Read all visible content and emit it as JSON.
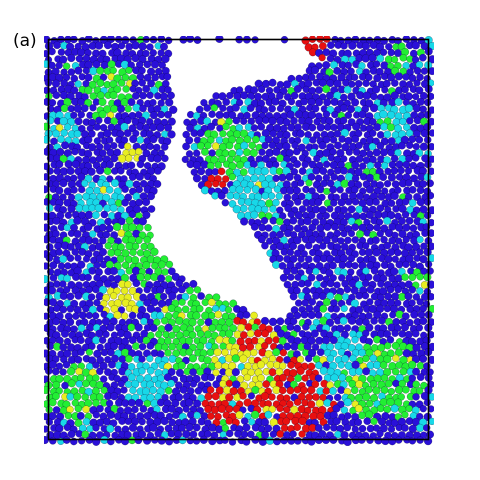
{
  "figure": {
    "panel_label": "(a)",
    "palette": {
      "blue": "#2a10d8",
      "cyan": "#18d8e8",
      "green": "#22ee33",
      "yellow": "#e8ee20",
      "red": "#e81010",
      "frame": "#000000",
      "void": "#ffffff"
    }
  }
}
